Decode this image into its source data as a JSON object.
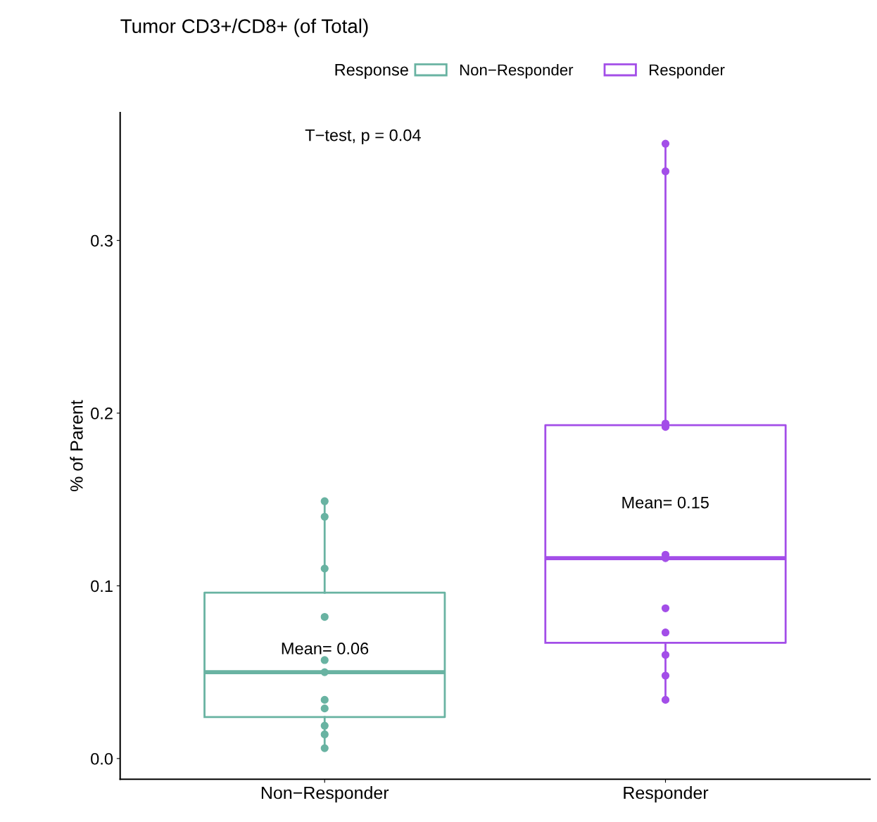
{
  "chart_data": {
    "type": "box",
    "title": "Tumor CD3+/CD8+ (of Total)",
    "ylabel": "% of Parent",
    "legend_title": "Response",
    "legend": "top",
    "grid": false,
    "categories": [
      "Non−Responder",
      "Responder"
    ],
    "ylim": [
      -0.012,
      0.374
    ],
    "yticks": [
      {
        "value": 0,
        "label": "0.0"
      },
      0.1,
      0.2,
      0.3
    ],
    "series": [
      {
        "name": "Non−Responder",
        "color": "#69b3a2",
        "boxes": [
          {
            "low": 0.005,
            "q1": 0.024,
            "median": 0.05,
            "q3": 0.096,
            "high": 0.149
          },
          null
        ]
      },
      {
        "name": "Responder",
        "color": "#a34ee8",
        "boxes": [
          null,
          {
            "low": 0.034,
            "q1": 0.067,
            "median": 0.116,
            "q3": 0.193,
            "high": 0.356
          }
        ]
      },
      {
        "type": "scatter",
        "color": "#69b3a2",
        "marker": "circle",
        "x": [
          "Non−Responder",
          "Non−Responder",
          "Non−Responder",
          "Non−Responder",
          "Non−Responder",
          "Non−Responder",
          "Non−Responder",
          "Non−Responder",
          "Non−Responder",
          "Non−Responder",
          "Non−Responder"
        ],
        "values": [
          0.149,
          0.14,
          0.11,
          0.082,
          0.05,
          0.057,
          0.034,
          0.029,
          0.019,
          0.014,
          0.006
        ]
      },
      {
        "type": "scatter",
        "color": "#a34ee8",
        "marker": "circle",
        "x": [
          "Responder",
          "Responder",
          "Responder",
          "Responder",
          "Responder",
          "Responder",
          "Responder",
          "Responder",
          "Responder",
          "Responder",
          "Responder"
        ],
        "values": [
          0.356,
          0.34,
          0.194,
          0.192,
          0.118,
          0.116,
          0.087,
          0.073,
          0.06,
          0.048,
          0.034
        ]
      }
    ],
    "annotations": [
      "T−test, p = 0.04",
      "Mean= 0.06",
      "Mean= 0.15"
    ]
  }
}
